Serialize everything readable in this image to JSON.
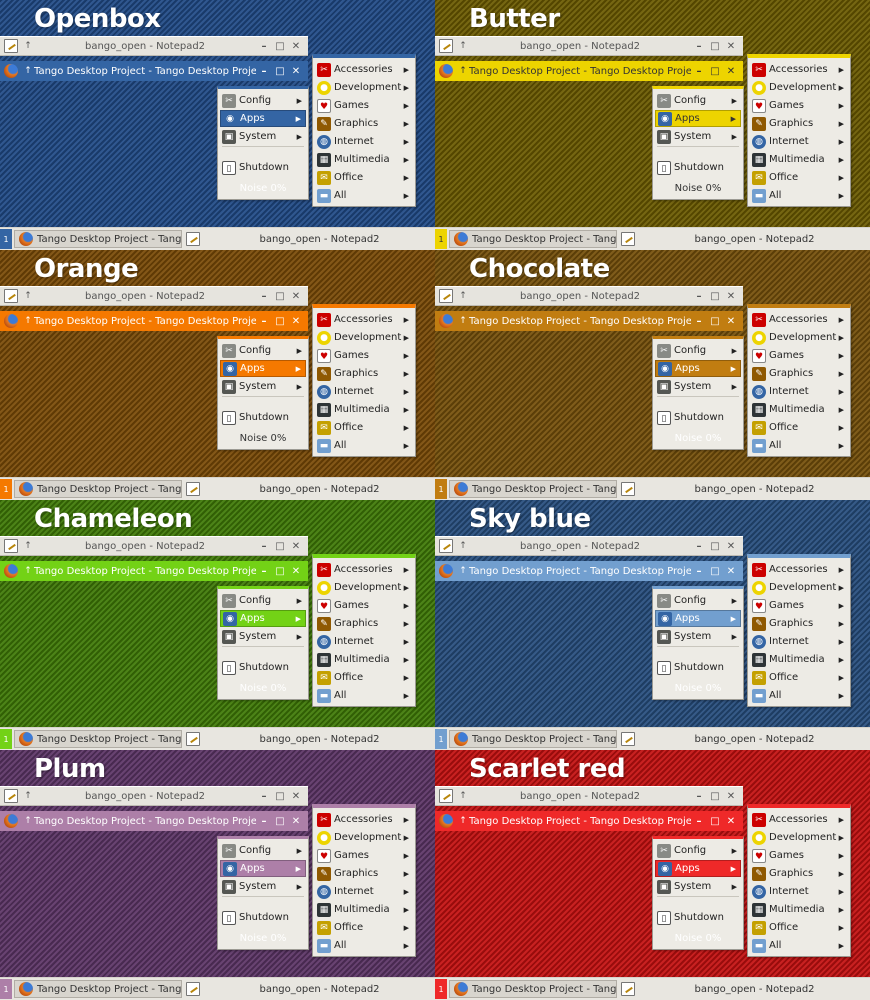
{
  "windows": {
    "inactive_title": "bango_open - Notepad2",
    "active_title": "Tango Desktop Project - Tango Desktop Project",
    "up_glyph": "↑",
    "buttons": {
      "minimize": "–",
      "maximize": "□",
      "close": "✕"
    }
  },
  "main_menu": {
    "items": [
      {
        "label": "Config",
        "icon": "config-icon",
        "glyph": "✂"
      },
      {
        "label": "Apps",
        "icon": "apps-icon",
        "glyph": "◉"
      },
      {
        "label": "System",
        "icon": "system-icon",
        "glyph": "▣"
      }
    ],
    "shutdown": {
      "label": "Shutdown",
      "icon": "shutdown-icon",
      "glyph": "▯"
    },
    "noise": "Noise 0%"
  },
  "submenu": {
    "items": [
      {
        "label": "Accessories",
        "icon": "accessories-icon",
        "glyph": "✂"
      },
      {
        "label": "Development",
        "icon": "development-icon",
        "glyph": "●"
      },
      {
        "label": "Games",
        "icon": "games-icon",
        "glyph": "♥"
      },
      {
        "label": "Graphics",
        "icon": "graphics-icon",
        "glyph": "✎"
      },
      {
        "label": "Internet",
        "icon": "internet-icon",
        "glyph": "◍"
      },
      {
        "label": "Multimedia",
        "icon": "multimedia-icon",
        "glyph": "▦"
      },
      {
        "label": "Office",
        "icon": "office-icon",
        "glyph": "✉"
      },
      {
        "label": "All",
        "icon": "all-icon",
        "glyph": "▬"
      }
    ]
  },
  "taskbar": {
    "desktop_number": "1",
    "focused_task": "Tango Desktop Project - Tang...",
    "other_task": "bango_open - Notepad2"
  },
  "themes": [
    {
      "name": "Openbox",
      "bg": "#204a87",
      "active": "#3465a4",
      "active_text": "#ffffff",
      "noise_color": "#ffffff"
    },
    {
      "name": "Butter",
      "bg": "#6b5a00",
      "active": "#edd400",
      "active_text": "#333333",
      "noise_color": "#333333"
    },
    {
      "name": "Orange",
      "bg": "#7a4a06",
      "active": "#f57900",
      "active_text": "#ffffff",
      "noise_color": "#333333"
    },
    {
      "name": "Chocolate",
      "bg": "#75500a",
      "active": "#c17d11",
      "active_text": "#ffffff",
      "noise_color": "#ffffff"
    },
    {
      "name": "Chameleon",
      "bg": "#3f7a06",
      "active": "#73d216",
      "active_text": "#ffffff",
      "noise_color": "#ffffff"
    },
    {
      "name": "Sky blue",
      "bg": "#274e7e",
      "active": "#729fcf",
      "active_text": "#ffffff",
      "noise_color": "#ffffff"
    },
    {
      "name": "Plum",
      "bg": "#5c3566",
      "active": "#ad7fa8",
      "active_text": "#ffffff",
      "noise_color": "#ffffff"
    },
    {
      "name": "Scarlet red",
      "bg": "#c41010",
      "active": "#ef2929",
      "active_text": "#ffffff",
      "noise_color": "#ffffff"
    }
  ]
}
